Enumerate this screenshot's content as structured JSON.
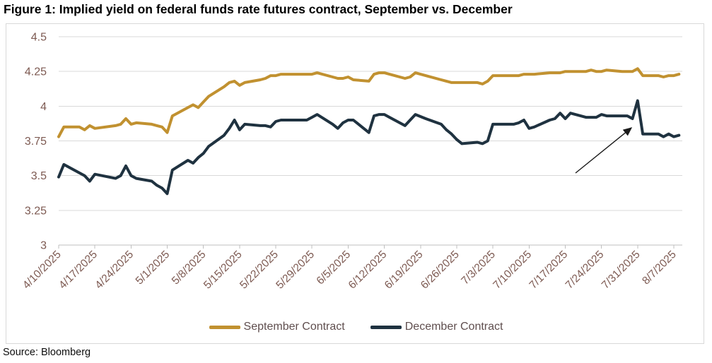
{
  "title": "Figure 1: Implied yield on federal funds rate futures contract, September vs. December",
  "source": "Source: Bloomberg",
  "colors": {
    "september_line": "#C19130",
    "december_line": "#1F3240",
    "gridline": "#d9d9d9",
    "axis": "#bfbfbf",
    "axis_label_text": "#7d5a52",
    "legend_text": "#5f4e4e",
    "annotation_arrow": "#1a1a1a",
    "frame_border": "#d9d9d9"
  },
  "chart_data": {
    "type": "line",
    "title": "Figure 1: Implied yield on federal funds rate futures contract, September vs. December",
    "xlabel": "",
    "ylabel": "",
    "ylim": [
      3,
      4.5
    ],
    "yticks": [
      3,
      3.25,
      3.5,
      3.75,
      4,
      4.25,
      4.5
    ],
    "ytick_labels": [
      "3",
      "3.25",
      "3.5",
      "3.75",
      "4",
      "4.25",
      "4.5"
    ],
    "xtick_labels": [
      "4/10/2025",
      "4/17/2025",
      "4/24/2025",
      "5/1/2025",
      "5/8/2025",
      "5/15/2025",
      "5/22/2025",
      "5/29/2025",
      "6/5/2025",
      "6/12/2025",
      "6/19/2025",
      "6/26/2025",
      "7/3/2025",
      "7/10/2025",
      "7/17/2025",
      "7/24/2025",
      "7/31/2025",
      "8/7/2025"
    ],
    "grid": "horizontal",
    "legend_position": "bottom",
    "x": [
      "4/10/2025",
      "4/11/2025",
      "4/14/2025",
      "4/15/2025",
      "4/16/2025",
      "4/17/2025",
      "4/21/2025",
      "4/22/2025",
      "4/23/2025",
      "4/24/2025",
      "4/25/2025",
      "4/28/2025",
      "4/29/2025",
      "4/30/2025",
      "5/1/2025",
      "5/2/2025",
      "5/5/2025",
      "5/6/2025",
      "5/7/2025",
      "5/8/2025",
      "5/9/2025",
      "5/12/2025",
      "5/13/2025",
      "5/14/2025",
      "5/15/2025",
      "5/16/2025",
      "5/19/2025",
      "5/20/2025",
      "5/21/2025",
      "5/22/2025",
      "5/23/2025",
      "5/27/2025",
      "5/28/2025",
      "5/29/2025",
      "5/30/2025",
      "6/2/2025",
      "6/3/2025",
      "6/4/2025",
      "6/5/2025",
      "6/6/2025",
      "6/9/2025",
      "6/10/2025",
      "6/11/2025",
      "6/12/2025",
      "6/13/2025",
      "6/16/2025",
      "6/17/2025",
      "6/18/2025",
      "6/20/2025",
      "6/23/2025",
      "6/24/2025",
      "6/25/2025",
      "6/26/2025",
      "6/27/2025",
      "6/30/2025",
      "7/1/2025",
      "7/2/2025",
      "7/3/2025",
      "7/7/2025",
      "7/8/2025",
      "7/9/2025",
      "7/10/2025",
      "7/11/2025",
      "7/14/2025",
      "7/15/2025",
      "7/16/2025",
      "7/17/2025",
      "7/18/2025",
      "7/21/2025",
      "7/22/2025",
      "7/23/2025",
      "7/24/2025",
      "7/25/2025",
      "7/28/2025",
      "7/29/2025",
      "7/30/2025",
      "7/31/2025",
      "8/1/2025",
      "8/4/2025",
      "8/5/2025",
      "8/6/2025",
      "8/7/2025",
      "8/8/2025"
    ],
    "series": [
      {
        "name": "September Contract",
        "color": "#C19130",
        "values": [
          3.78,
          3.85,
          3.85,
          3.83,
          3.86,
          3.84,
          3.86,
          3.87,
          3.91,
          3.87,
          3.88,
          3.87,
          3.86,
          3.85,
          3.81,
          3.93,
          3.99,
          4.01,
          3.99,
          4.03,
          4.07,
          4.14,
          4.17,
          4.18,
          4.15,
          4.17,
          4.19,
          4.2,
          4.22,
          4.22,
          4.23,
          4.23,
          4.23,
          4.23,
          4.24,
          4.21,
          4.2,
          4.2,
          4.21,
          4.19,
          4.18,
          4.23,
          4.24,
          4.24,
          4.23,
          4.2,
          4.21,
          4.24,
          4.22,
          4.19,
          4.18,
          4.17,
          4.17,
          4.17,
          4.17,
          4.16,
          4.18,
          4.22,
          4.22,
          4.22,
          4.23,
          4.23,
          4.23,
          4.24,
          4.24,
          4.24,
          4.25,
          4.25,
          4.25,
          4.26,
          4.25,
          4.25,
          4.26,
          4.25,
          4.25,
          4.25,
          4.27,
          4.22,
          4.22,
          4.21,
          4.22,
          4.22,
          4.23
        ]
      },
      {
        "name": "December Contract",
        "color": "#1F3240",
        "values": [
          3.49,
          3.58,
          3.52,
          3.5,
          3.46,
          3.51,
          3.48,
          3.5,
          3.57,
          3.5,
          3.48,
          3.46,
          3.43,
          3.41,
          3.37,
          3.54,
          3.61,
          3.59,
          3.63,
          3.66,
          3.71,
          3.79,
          3.84,
          3.9,
          3.83,
          3.87,
          3.86,
          3.86,
          3.85,
          3.89,
          3.9,
          3.9,
          3.9,
          3.92,
          3.94,
          3.87,
          3.84,
          3.88,
          3.9,
          3.9,
          3.81,
          3.93,
          3.94,
          3.94,
          3.92,
          3.86,
          3.9,
          3.94,
          3.91,
          3.87,
          3.83,
          3.8,
          3.76,
          3.73,
          3.74,
          3.73,
          3.75,
          3.87,
          3.87,
          3.88,
          3.9,
          3.84,
          3.85,
          3.9,
          3.91,
          3.95,
          3.91,
          3.95,
          3.92,
          3.92,
          3.92,
          3.94,
          3.93,
          3.93,
          3.93,
          3.91,
          4.04,
          3.8,
          3.8,
          3.78,
          3.8,
          3.78,
          3.79
        ]
      }
    ],
    "annotation": {
      "type": "arrow",
      "description": "arrow pointing to December contract spike on 7/31/2025",
      "tail": [
        814,
        245
      ],
      "tip": [
        897,
        178
      ]
    }
  }
}
